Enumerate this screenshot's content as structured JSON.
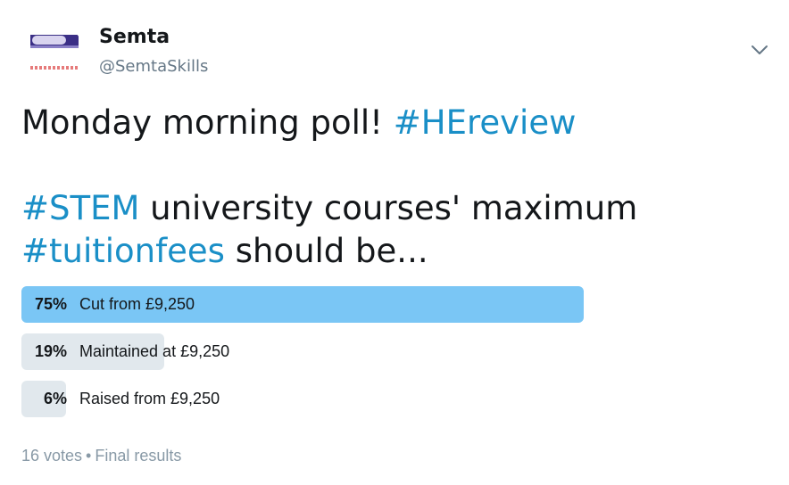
{
  "author": {
    "name": "Semta",
    "handle": "@SemtaSkills"
  },
  "icons": {
    "avatar": "semta-logo",
    "menu": "chevron-down-icon"
  },
  "tweet": {
    "line1_text": "Monday morning poll! ",
    "line1_hashtag": "#HEreview",
    "line2_hashtag": "#STEM",
    "line2_text": " university courses' maximum",
    "line3_hashtag": "#tuitionfees",
    "line3_text": " should be..."
  },
  "poll": {
    "options": [
      {
        "percent_label": "75%",
        "percent": 75,
        "label": "Cut from £9,250",
        "winner": true
      },
      {
        "percent_label": "19%",
        "percent": 19,
        "label": "Maintained at £9,250",
        "winner": false
      },
      {
        "percent_label": "6%",
        "percent": 6,
        "label": "Raised from £9,250",
        "winner": false
      }
    ],
    "votes": "16 votes",
    "separator": "•",
    "status": "Final results"
  },
  "colors": {
    "winner_bar": "#7ac6f5",
    "other_bar": "#e1e8ed",
    "hashtag": "#1a8fc7",
    "muted": "#657786"
  }
}
